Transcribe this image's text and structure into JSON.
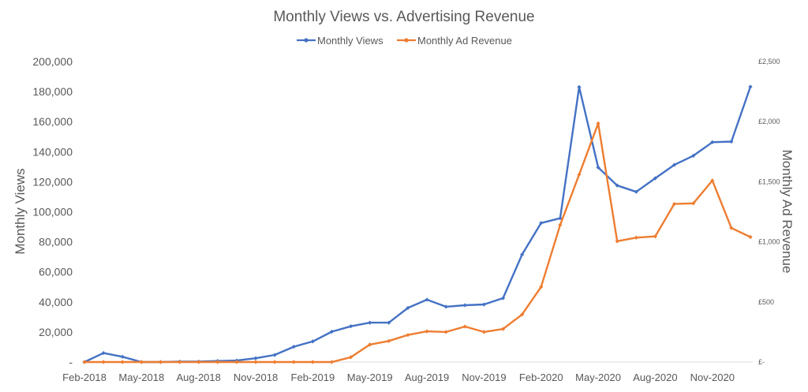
{
  "chart_data": {
    "type": "line",
    "title": "Monthly Views vs. Advertising Revenue",
    "legend_position": "top",
    "ylabel_left": "Monthly Views",
    "ylabel_right": "Monthly Ad Revenue",
    "y_left_lim": [
      0,
      200000
    ],
    "y_left_ticks": [
      "-",
      "20,000",
      "40,000",
      "60,000",
      "80,000",
      "100,000",
      "120,000",
      "140,000",
      "160,000",
      "180,000",
      "200,000"
    ],
    "y_right_lim": [
      0,
      2500
    ],
    "y_right_ticks": [
      "£-",
      "£500",
      "£1,000",
      "£1,500",
      "£2,000",
      "£2,500"
    ],
    "x_tick_labels": [
      "Feb-2018",
      "May-2018",
      "Aug-2018",
      "Nov-2018",
      "Feb-2019",
      "May-2019",
      "Aug-2019",
      "Nov-2019",
      "Feb-2020",
      "May-2020",
      "Aug-2020",
      "Nov-2020"
    ],
    "x": [
      "Feb-2018",
      "Mar-2018",
      "Apr-2018",
      "May-2018",
      "Jun-2018",
      "Jul-2018",
      "Aug-2018",
      "Sep-2018",
      "Oct-2018",
      "Nov-2018",
      "Dec-2018",
      "Jan-2019",
      "Feb-2019",
      "Mar-2019",
      "Apr-2019",
      "May-2019",
      "Jun-2019",
      "Jul-2019",
      "Aug-2019",
      "Sep-2019",
      "Oct-2019",
      "Nov-2019",
      "Dec-2019",
      "Jan-2020",
      "Feb-2020",
      "Mar-2020",
      "Apr-2020",
      "May-2020",
      "Jun-2020",
      "Jul-2020",
      "Aug-2020",
      "Sep-2020",
      "Oct-2020",
      "Nov-2020",
      "Dec-2020",
      "Jan-2021"
    ],
    "series": [
      {
        "name": "Monthly Views",
        "axis": "left",
        "color": "#4472C4",
        "values": [
          0,
          6000,
          3500,
          0,
          0,
          300,
          300,
          700,
          1000,
          2500,
          4700,
          10200,
          13700,
          20200,
          23800,
          26200,
          26200,
          36000,
          41500,
          36800,
          37800,
          38300,
          42500,
          71500,
          92500,
          95700,
          183000,
          129500,
          117500,
          113300,
          122300,
          131200,
          137300,
          146300,
          146700,
          183200
        ]
      },
      {
        "name": "Monthly Ad Revenue",
        "axis": "right",
        "color": "#ED7D31",
        "values": [
          0,
          0,
          0,
          0,
          0,
          0,
          0,
          0,
          0,
          0,
          0,
          0,
          0,
          0,
          40,
          145,
          175,
          225,
          255,
          250,
          295,
          250,
          275,
          395,
          625,
          1140,
          1560,
          1985,
          1005,
          1035,
          1045,
          1315,
          1320,
          1510,
          1115,
          1040
        ]
      }
    ]
  }
}
